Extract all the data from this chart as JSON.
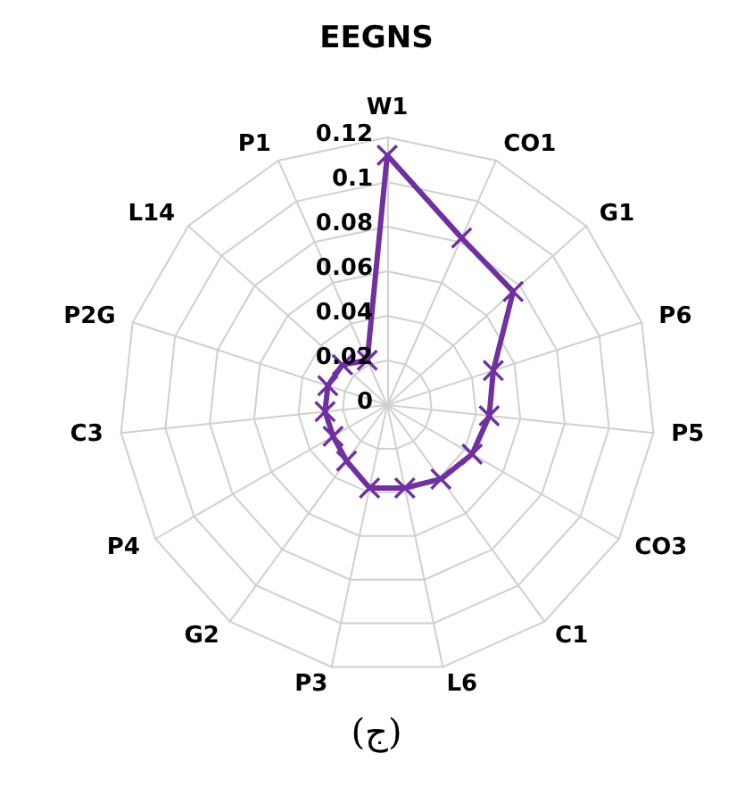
{
  "chart_data": {
    "type": "radar",
    "title": "EEGNS",
    "annotations": [
      "(ج)"
    ],
    "categories": [
      "W1",
      "CO1",
      "G1",
      "P6",
      "P5",
      "CO3",
      "C1",
      "L6",
      "P3",
      "G2",
      "P4",
      "C3",
      "P2G",
      "L14",
      "P1"
    ],
    "series": [
      {
        "color": "#7030a0",
        "values": [
          0.112,
          0.082,
          0.076,
          0.05,
          0.046,
          0.044,
          0.041,
          0.038,
          0.038,
          0.031,
          0.028,
          0.028,
          0.028,
          0.027,
          0.022
        ]
      }
    ],
    "ylim": [
      0,
      0.12
    ],
    "yticks": [
      0,
      0.02,
      0.04,
      0.06,
      0.08,
      0.1,
      0.12
    ],
    "grid": true,
    "marker": "cross",
    "line_style": "solid"
  }
}
